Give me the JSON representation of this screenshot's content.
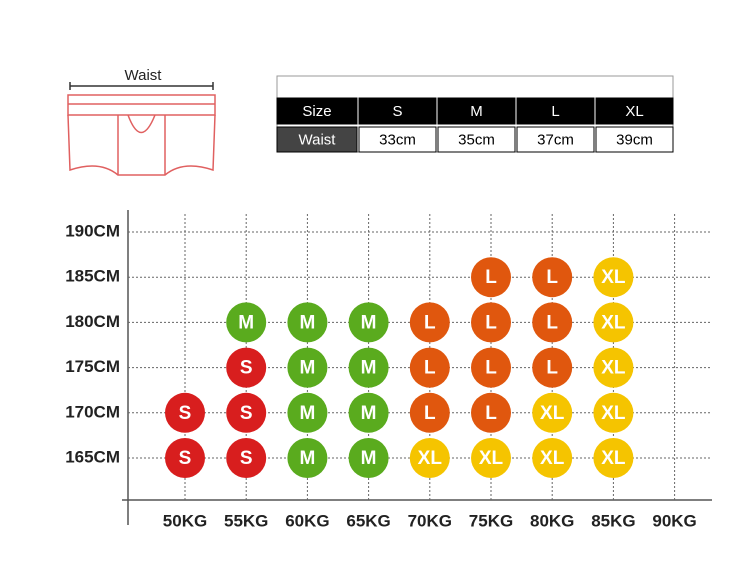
{
  "diagram": {
    "label": "Waist"
  },
  "table": {
    "rows": [
      [
        "Size",
        "S",
        "M",
        "L",
        "XL"
      ],
      [
        "Waist",
        "33cm",
        "35cm",
        "37cm",
        "39cm"
      ]
    ]
  },
  "grid": {
    "x_labels": [
      "50KG",
      "55KG",
      "60KG",
      "65KG",
      "70KG",
      "75KG",
      "80KG",
      "85KG",
      "90KG"
    ],
    "y_labels": [
      "190CM",
      "185CM",
      "180CM",
      "175CM",
      "170CM",
      "165CM"
    ],
    "rows": [
      [
        null,
        null,
        null,
        null,
        null,
        null,
        null,
        null,
        null
      ],
      [
        null,
        null,
        null,
        null,
        null,
        "L",
        "L",
        "XL",
        null
      ],
      [
        null,
        "M",
        "M",
        "M",
        "L",
        "L",
        "L",
        "XL",
        null
      ],
      [
        null,
        "S",
        "M",
        "M",
        "L",
        "L",
        "L",
        "XL",
        null
      ],
      [
        "S",
        "S",
        "M",
        "M",
        "L",
        "L",
        "XL",
        "XL",
        null
      ],
      [
        "S",
        "S",
        "M",
        "M",
        "XL",
        "XL",
        "XL",
        "XL",
        null
      ]
    ]
  }
}
